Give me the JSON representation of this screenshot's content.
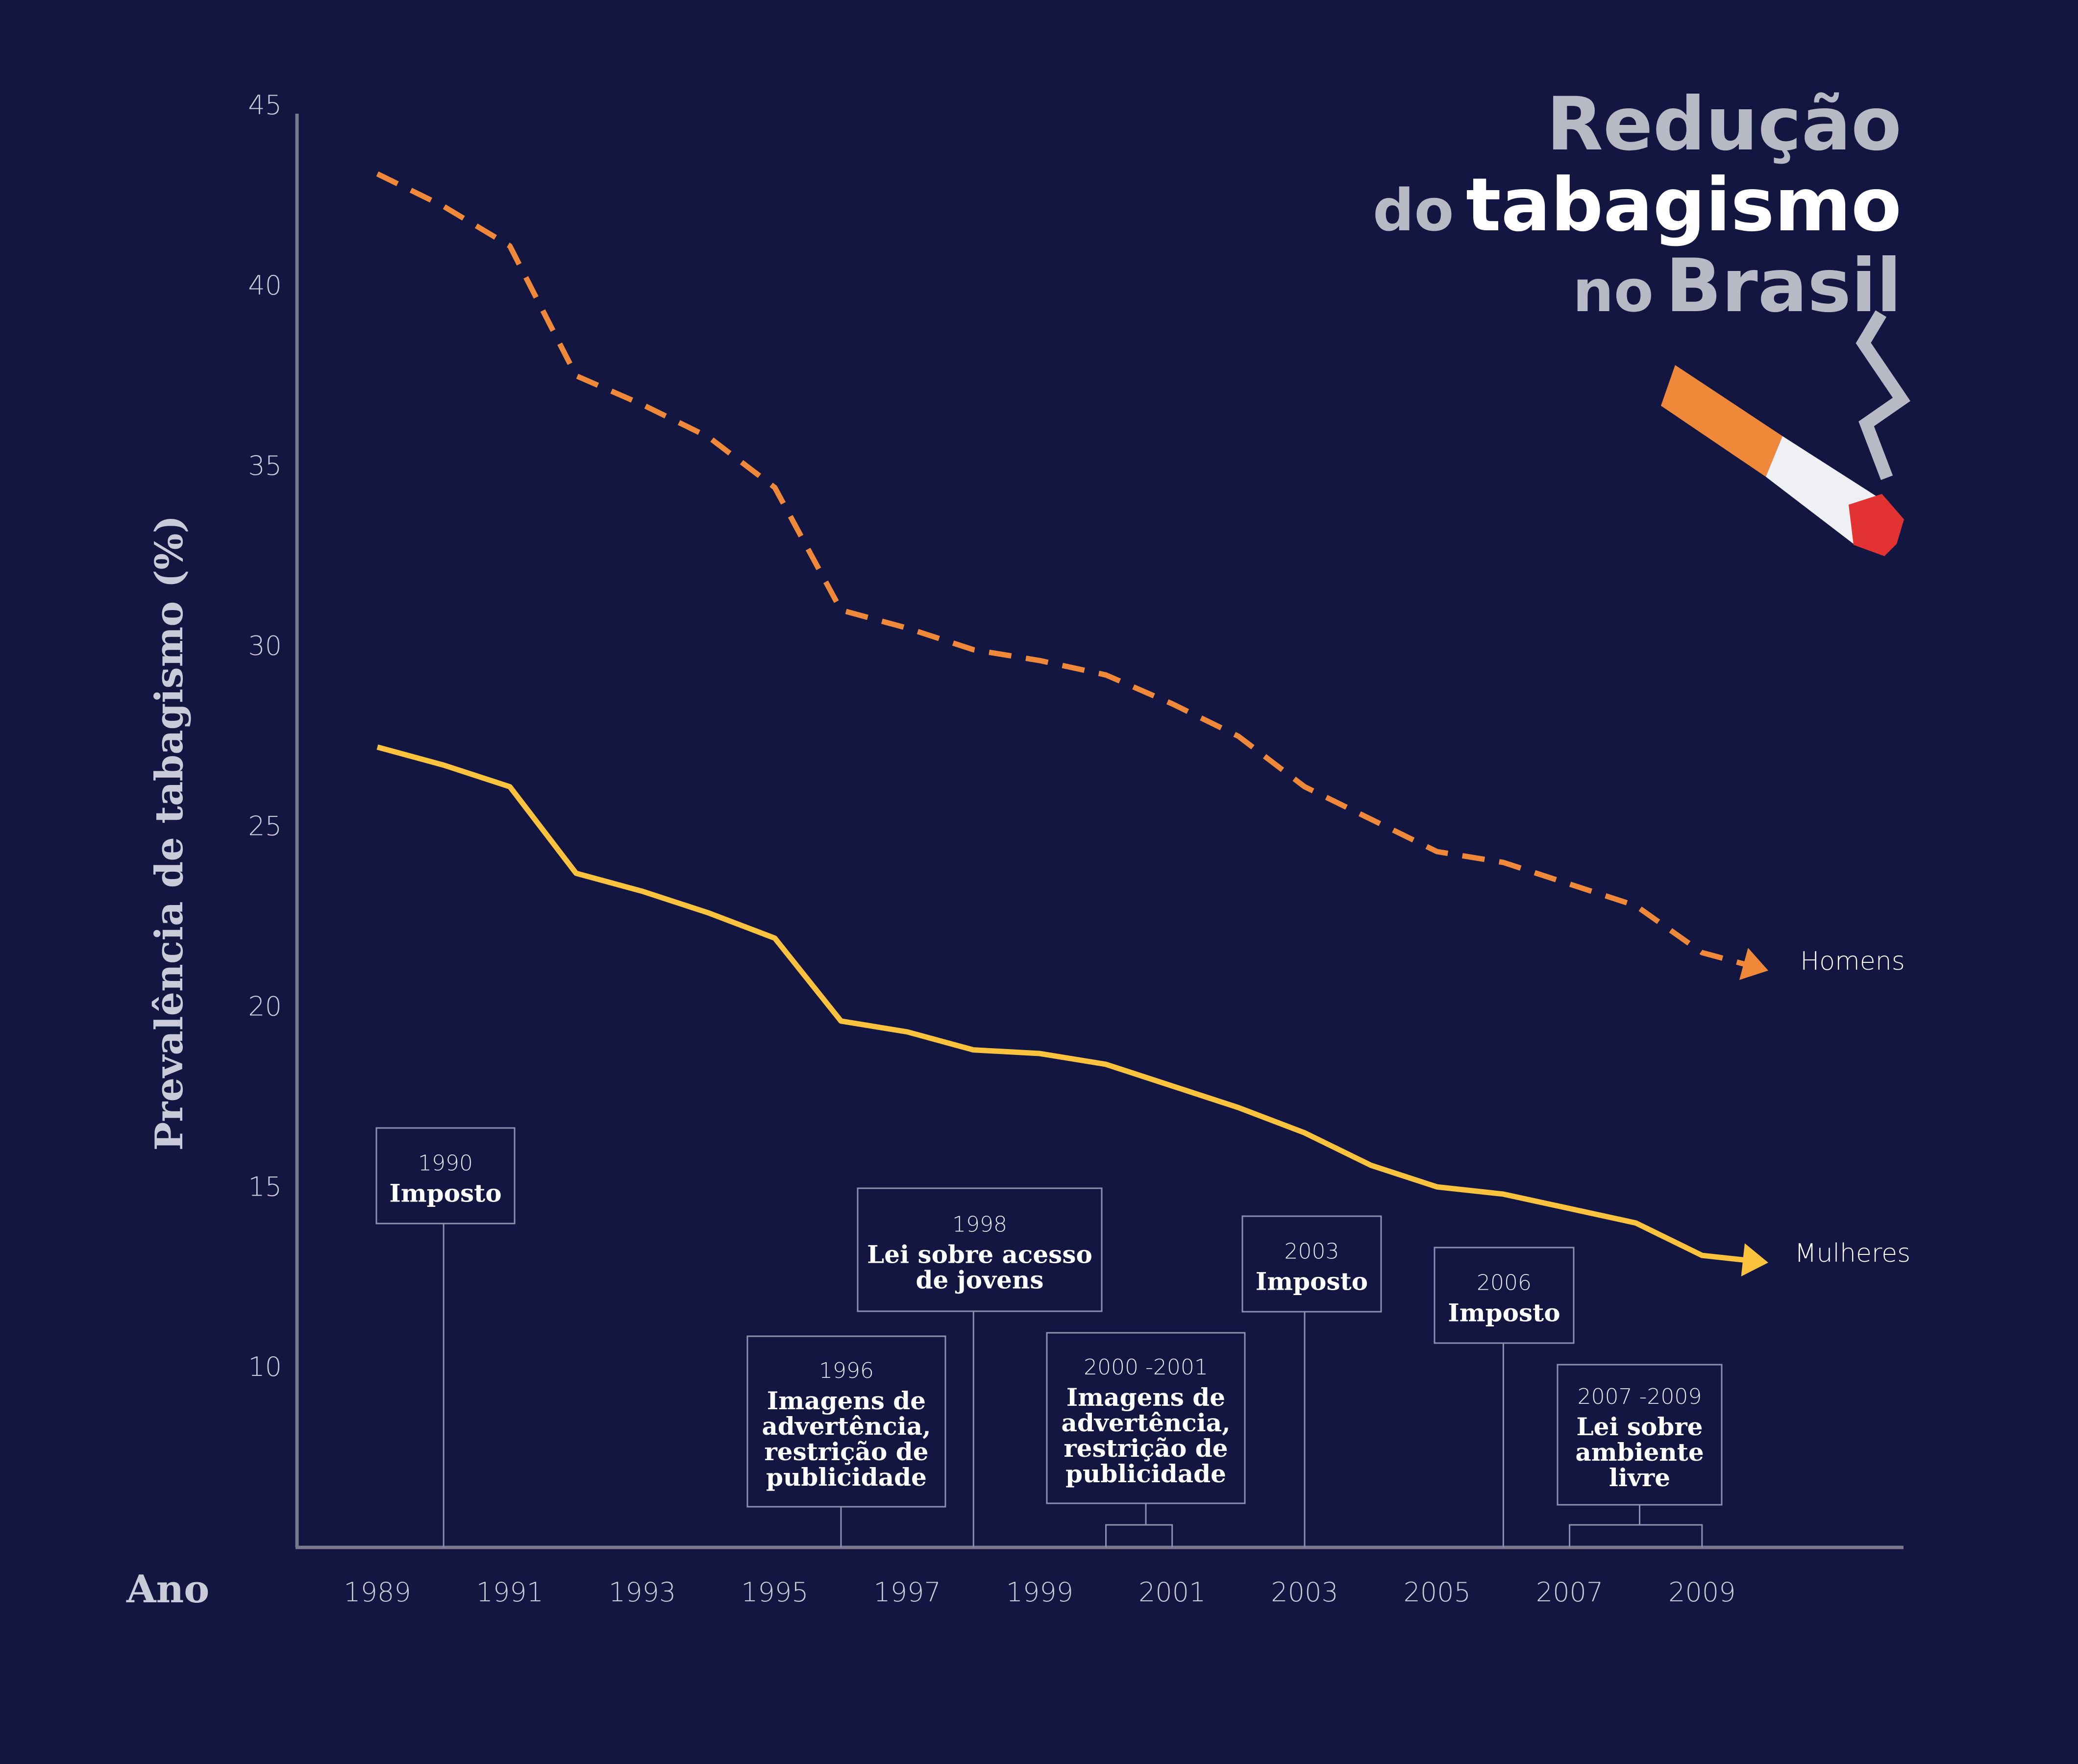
{
  "title": {
    "line1": "Redução",
    "line2_light": "do",
    "line2_bold": "tabagismo",
    "line3_light": "no",
    "line3_bold": "Brasil"
  },
  "chart_data": {
    "type": "line",
    "ylabel": "Prevalência de tabagismo (%)",
    "xlabel": "Ano",
    "ylim": [
      5,
      45
    ],
    "xlim": [
      1989,
      2010
    ],
    "y_ticks": [
      10,
      15,
      20,
      25,
      30,
      35,
      40,
      45
    ],
    "x_ticks": [
      1989,
      1991,
      1993,
      1995,
      1997,
      1999,
      2001,
      2003,
      2005,
      2007,
      2009
    ],
    "grid": false,
    "series": [
      {
        "name": "Homens",
        "style": "dashed",
        "color": "#f0883a",
        "x": [
          1989,
          1990,
          1991,
          1992,
          1993,
          1994,
          1995,
          1996,
          1997,
          1998,
          1999,
          2000,
          2001,
          2002,
          2003,
          2004,
          2005,
          2006,
          2007,
          2008,
          2009,
          2010
        ],
        "values": [
          43.1,
          42.2,
          41.1,
          37.5,
          36.7,
          35.8,
          34.4,
          31.0,
          30.5,
          29.9,
          29.6,
          29.2,
          28.4,
          27.5,
          26.1,
          25.2,
          24.3,
          24.0,
          23.4,
          22.8,
          21.5,
          21.0
        ]
      },
      {
        "name": "Mulheres",
        "style": "solid",
        "color": "#fbc23d",
        "x": [
          1989,
          1990,
          1991,
          1992,
          1993,
          1994,
          1995,
          1996,
          1997,
          1998,
          1999,
          2000,
          2001,
          2002,
          2003,
          2004,
          2005,
          2006,
          2007,
          2008,
          2009,
          2010
        ],
        "values": [
          27.2,
          26.7,
          26.1,
          23.7,
          23.2,
          22.6,
          21.9,
          19.6,
          19.3,
          18.8,
          18.7,
          18.4,
          17.8,
          17.2,
          16.5,
          15.6,
          15.0,
          14.8,
          14.4,
          14.0,
          13.1,
          12.9
        ]
      }
    ],
    "annotations": [
      {
        "year_label": "1990",
        "lines": [
          "Imposto"
        ],
        "x_from": 1990,
        "x_to": 1990
      },
      {
        "year_label": "1996",
        "lines": [
          "Imagens de",
          "advertência,",
          "restrição de",
          "publicidade"
        ],
        "x_from": 1996,
        "x_to": 1996
      },
      {
        "year_label": "1998",
        "lines": [
          "Lei sobre acesso",
          "de jovens"
        ],
        "x_from": 1998,
        "x_to": 1998
      },
      {
        "year_label": "2000 -2001",
        "lines": [
          "Imagens de",
          "advertência,",
          "restrição de",
          "publicidade"
        ],
        "x_from": 2000,
        "x_to": 2001
      },
      {
        "year_label": "2003",
        "lines": [
          "Imposto"
        ],
        "x_from": 2003,
        "x_to": 2003
      },
      {
        "year_label": "2006",
        "lines": [
          "Imposto"
        ],
        "x_from": 2006,
        "x_to": 2006
      },
      {
        "year_label": "2007 -2009",
        "lines": [
          "Lei sobre",
          "ambiente",
          "livre"
        ],
        "x_from": 2007,
        "x_to": 2009
      }
    ]
  },
  "colors": {
    "background": "#121640",
    "axis": "#767a8c",
    "annotation_border": "#8a90b0"
  }
}
